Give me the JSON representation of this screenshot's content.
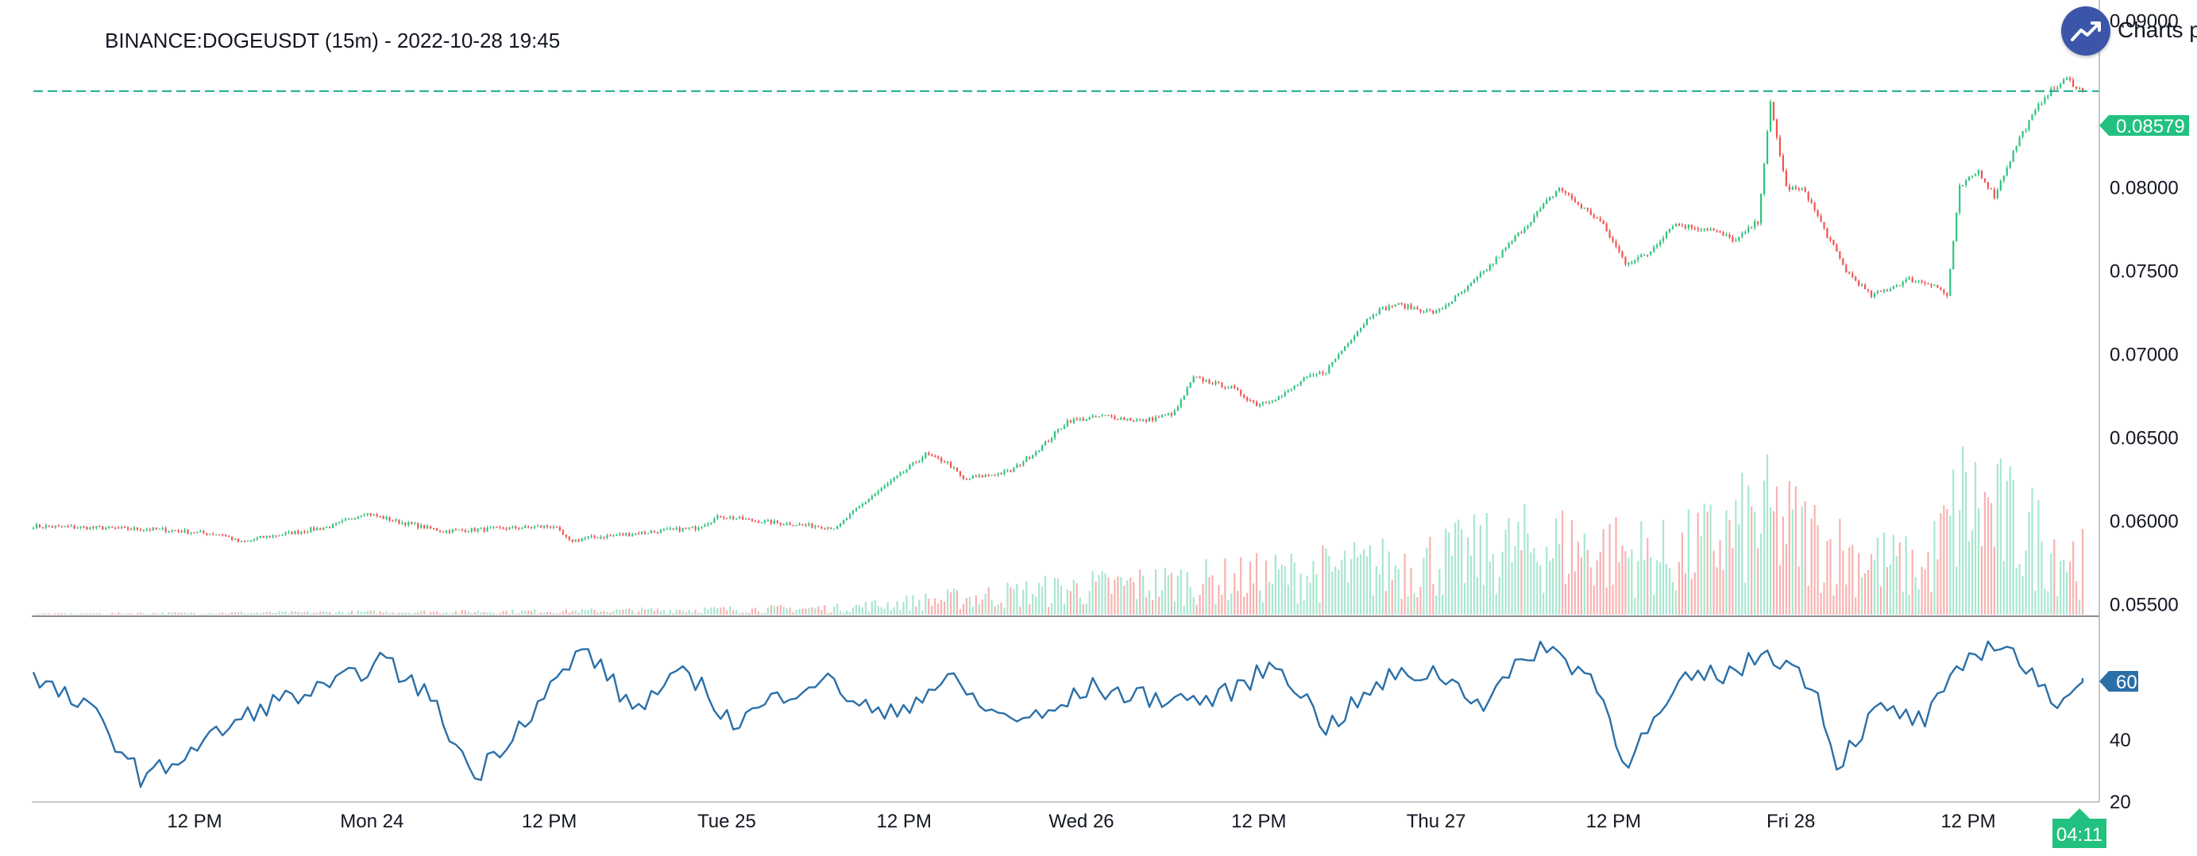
{
  "header": {
    "title": "BINANCE:DOGEUSDT (15m) - 2022-10-28 19:45",
    "logo_text": "Charts p"
  },
  "colors": {
    "up": "#26a69a",
    "up_bright": "#2ec27e",
    "down": "#ef5350",
    "volume_up": "#a8e6cf",
    "volume_down": "#f7b2b0",
    "rsi_line": "#2a6fa8",
    "rsi_badge": "#2a6fa8",
    "price_line": "#17a98a",
    "price_badge": "#22c17f",
    "axis": "#787b86",
    "logo": "#3b56a9"
  },
  "icons": {
    "logo": "trend-up-icon"
  },
  "chart_data": {
    "type": "candlestick",
    "title": "BINANCE:DOGEUSDT (15m) - 2022-10-28 19:45",
    "x_ticks": [
      "12 PM",
      "Mon 24",
      "12 PM",
      "Tue 25",
      "12 PM",
      "Wed 26",
      "12 PM",
      "Thu 27",
      "12 PM",
      "Fri 28",
      "12 PM"
    ],
    "time_badge": "04:11",
    "price_axis": {
      "ticks": [
        "0.09000",
        "0.08000",
        "0.07500",
        "0.07000",
        "0.06500",
        "0.06000",
        "0.05500"
      ],
      "ylim": [
        0.0543,
        0.0903
      ]
    },
    "last_price": 0.08579,
    "last_price_label": "0.08579",
    "price_path": [
      [
        0,
        0.0597
      ],
      [
        40,
        0.0595
      ],
      [
        60,
        0.0592
      ],
      [
        66,
        0.0587
      ],
      [
        72,
        0.059
      ],
      [
        95,
        0.0597
      ],
      [
        105,
        0.0605
      ],
      [
        115,
        0.06
      ],
      [
        130,
        0.0594
      ],
      [
        165,
        0.0597
      ],
      [
        170,
        0.0588
      ],
      [
        176,
        0.059
      ],
      [
        210,
        0.0596
      ],
      [
        218,
        0.0603
      ],
      [
        230,
        0.06
      ],
      [
        255,
        0.0596
      ],
      [
        258,
        0.0602
      ],
      [
        266,
        0.0615
      ],
      [
        275,
        0.0628
      ],
      [
        283,
        0.064
      ],
      [
        290,
        0.0635
      ],
      [
        295,
        0.0625
      ],
      [
        310,
        0.063
      ],
      [
        320,
        0.0645
      ],
      [
        328,
        0.066
      ],
      [
        340,
        0.0663
      ],
      [
        352,
        0.066
      ],
      [
        362,
        0.0665
      ],
      [
        368,
        0.0686
      ],
      [
        380,
        0.068
      ],
      [
        388,
        0.067
      ],
      [
        396,
        0.0675
      ],
      [
        403,
        0.0685
      ],
      [
        410,
        0.069
      ],
      [
        418,
        0.071
      ],
      [
        425,
        0.0725
      ],
      [
        432,
        0.073
      ],
      [
        445,
        0.0725
      ],
      [
        455,
        0.074
      ],
      [
        463,
        0.0755
      ],
      [
        470,
        0.077
      ],
      [
        477,
        0.0785
      ],
      [
        484,
        0.08
      ],
      [
        490,
        0.079
      ],
      [
        497,
        0.078
      ],
      [
        505,
        0.0755
      ],
      [
        512,
        0.076
      ],
      [
        520,
        0.0778
      ],
      [
        532,
        0.0775
      ],
      [
        540,
        0.0768
      ],
      [
        547,
        0.078
      ],
      [
        551,
        0.085
      ],
      [
        556,
        0.08
      ],
      [
        562,
        0.0798
      ],
      [
        568,
        0.0775
      ],
      [
        575,
        0.075
      ],
      [
        583,
        0.0735
      ],
      [
        595,
        0.0745
      ],
      [
        603,
        0.0742
      ],
      [
        607,
        0.0735
      ],
      [
        611,
        0.08
      ],
      [
        617,
        0.081
      ],
      [
        622,
        0.0795
      ],
      [
        630,
        0.083
      ],
      [
        638,
        0.0855
      ],
      [
        645,
        0.0865
      ],
      [
        650,
        0.0858
      ]
    ],
    "volume_path": [
      [
        0,
        0.2
      ],
      [
        60,
        0.4
      ],
      [
        120,
        0.6
      ],
      [
        170,
        0.8
      ],
      [
        255,
        1.5
      ],
      [
        290,
        3.5
      ],
      [
        330,
        6
      ],
      [
        380,
        8
      ],
      [
        430,
        11
      ],
      [
        480,
        16
      ],
      [
        520,
        13
      ],
      [
        550,
        22
      ],
      [
        575,
        14
      ],
      [
        600,
        10
      ],
      [
        612,
        26
      ],
      [
        630,
        20
      ],
      [
        650,
        12
      ]
    ],
    "rsi": {
      "ticks": [
        "60",
        "40",
        "20"
      ],
      "ylim": [
        20,
        80
      ],
      "last_value": 60,
      "last_label": "60",
      "path": [
        [
          0,
          60
        ],
        [
          20,
          48
        ],
        [
          35,
          27
        ],
        [
          55,
          40
        ],
        [
          75,
          52
        ],
        [
          95,
          57
        ],
        [
          110,
          66
        ],
        [
          125,
          55
        ],
        [
          140,
          28
        ],
        [
          160,
          52
        ],
        [
          175,
          70
        ],
        [
          190,
          50
        ],
        [
          208,
          62
        ],
        [
          222,
          45
        ],
        [
          238,
          55
        ],
        [
          250,
          60
        ],
        [
          270,
          47
        ],
        [
          290,
          60
        ],
        [
          305,
          48
        ],
        [
          320,
          47
        ],
        [
          335,
          57
        ],
        [
          350,
          54
        ],
        [
          375,
          53
        ],
        [
          395,
          65
        ],
        [
          410,
          44
        ],
        [
          430,
          60
        ],
        [
          445,
          62
        ],
        [
          460,
          52
        ],
        [
          478,
          71
        ],
        [
          495,
          60
        ],
        [
          505,
          33
        ],
        [
          525,
          60
        ],
        [
          540,
          62
        ],
        [
          550,
          69
        ],
        [
          565,
          58
        ],
        [
          572,
          32
        ],
        [
          585,
          50
        ],
        [
          600,
          46
        ],
        [
          615,
          68
        ],
        [
          625,
          72
        ],
        [
          640,
          52
        ],
        [
          650,
          60
        ]
      ]
    }
  }
}
